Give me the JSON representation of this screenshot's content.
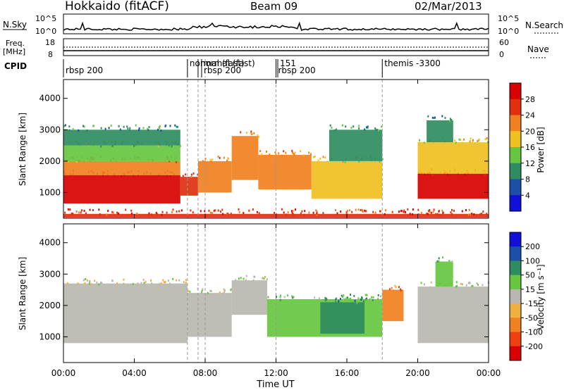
{
  "header": {
    "station": "Hokkaido (fitACF)",
    "beam": "Beam 09",
    "date": "02/Mar/2013"
  },
  "aux_panels": {
    "nsky_label": "N.Sky",
    "nsky_ticks": [
      "10^5",
      "10^0"
    ],
    "nsearch_label": "N.Search",
    "nsearch_ticks": [
      "10^5",
      "10^0"
    ],
    "freq_label_line1": "Freq.",
    "freq_label_line2": "[MHz]",
    "freq_ticks": [
      "18",
      "8"
    ],
    "nave_label": "Nave",
    "nave_ticks": [
      "60",
      "0"
    ],
    "cpid_label": "CPID"
  },
  "cpid_segments": [
    {
      "label": "rbsp 200",
      "start_h": 0.0
    },
    {
      "label": "normal (fast)",
      "start_h": 7.0
    },
    {
      "label": "normal (fast)",
      "start_h": 7.6
    },
    {
      "label": "rbsp 200",
      "start_h": 7.8
    },
    {
      "label": "rbsp 200",
      "start_h": 12.0
    },
    {
      "label": "151",
      "start_h": 12.1
    },
    {
      "label": "themis -3300",
      "start_h": 18.0
    }
  ],
  "colors": {
    "power_scale": [
      "#1010d8",
      "#1c4fa8",
      "#2f8c60",
      "#66c640",
      "#f0c020",
      "#f08020",
      "#e03010",
      "#d80000"
    ],
    "velocity_scale": [
      "#d80000",
      "#f04010",
      "#f08020",
      "#f0b040",
      "#b8b8b0",
      "#66c640",
      "#2f8c60",
      "#1c4fa8",
      "#1010d8"
    ]
  },
  "chart_data": {
    "type": "heatmap",
    "x_axis": {
      "label": "Time UT",
      "ticks": [
        "00:00",
        "04:00",
        "08:00",
        "12:00",
        "16:00",
        "20:00",
        "00:00"
      ],
      "range_h": [
        0,
        24
      ]
    },
    "y_axis": {
      "label": "Slant Range [km]",
      "ticks": [
        "1000",
        "2000",
        "3000",
        "4000"
      ],
      "range_km": [
        180,
        4600
      ]
    },
    "power_colorbar": {
      "label": "Power [dB]",
      "ticks": [
        "28",
        "24",
        "20",
        "16",
        "12",
        "8",
        "4"
      ],
      "range": [
        0,
        32
      ]
    },
    "velocity_colorbar": {
      "label": "Velocity [m s⁻¹]",
      "ticks": [
        "200",
        "100",
        "50",
        "15",
        "-15",
        "-50",
        "-100",
        "-200"
      ]
    },
    "event_lines_h": [
      7.0,
      7.6,
      8.0,
      12.0,
      18.0
    ],
    "power_regions": [
      {
        "t0": 0.0,
        "t1": 6.6,
        "r0": 650,
        "r1": 1550,
        "level": 7
      },
      {
        "t0": 0.0,
        "t1": 6.6,
        "r0": 1550,
        "r1": 2000,
        "level": 5
      },
      {
        "t0": 0.0,
        "t1": 6.6,
        "r0": 2000,
        "r1": 2500,
        "level": 3
      },
      {
        "t0": 0.0,
        "t1": 6.6,
        "r0": 2500,
        "r1": 3000,
        "level": 2
      },
      {
        "t0": 6.6,
        "t1": 7.6,
        "r0": 900,
        "r1": 1500,
        "level": 6
      },
      {
        "t0": 7.6,
        "t1": 9.5,
        "r0": 1000,
        "r1": 2000,
        "level": 5
      },
      {
        "t0": 9.5,
        "t1": 11.0,
        "r0": 1400,
        "r1": 2800,
        "level": 5
      },
      {
        "t0": 11.0,
        "t1": 14.0,
        "r0": 1100,
        "r1": 2200,
        "level": 5
      },
      {
        "t0": 14.0,
        "t1": 18.0,
        "r0": 800,
        "r1": 2000,
        "level": 4
      },
      {
        "t0": 15.0,
        "t1": 18.0,
        "r0": 2000,
        "r1": 3000,
        "level": 2
      },
      {
        "t0": 20.0,
        "t1": 24.0,
        "r0": 800,
        "r1": 1600,
        "level": 7
      },
      {
        "t0": 20.0,
        "t1": 24.0,
        "r0": 1600,
        "r1": 2600,
        "level": 4
      },
      {
        "t0": 20.5,
        "t1": 22.0,
        "r0": 2600,
        "r1": 3300,
        "level": 2
      },
      {
        "t0": 0.0,
        "t1": 24.0,
        "r0": 200,
        "r1": 320,
        "level": 6
      }
    ],
    "velocity_regions": [
      {
        "t0": 0.0,
        "t1": 7.0,
        "r0": 800,
        "r1": 2700,
        "level": 4
      },
      {
        "t0": 7.0,
        "t1": 9.5,
        "r0": 1000,
        "r1": 2400,
        "level": 4
      },
      {
        "t0": 9.5,
        "t1": 11.5,
        "r0": 1700,
        "r1": 2800,
        "level": 4
      },
      {
        "t0": 11.5,
        "t1": 18.0,
        "r0": 1000,
        "r1": 2200,
        "level": 5
      },
      {
        "t0": 14.5,
        "t1": 17.0,
        "r0": 1100,
        "r1": 2100,
        "level": 6
      },
      {
        "t0": 18.0,
        "t1": 19.2,
        "r0": 1500,
        "r1": 2500,
        "level": 2
      },
      {
        "t0": 20.0,
        "t1": 24.0,
        "r0": 800,
        "r1": 2600,
        "level": 4
      },
      {
        "t0": 21.0,
        "t1": 22.0,
        "r0": 2600,
        "r1": 3400,
        "level": 5
      }
    ]
  }
}
